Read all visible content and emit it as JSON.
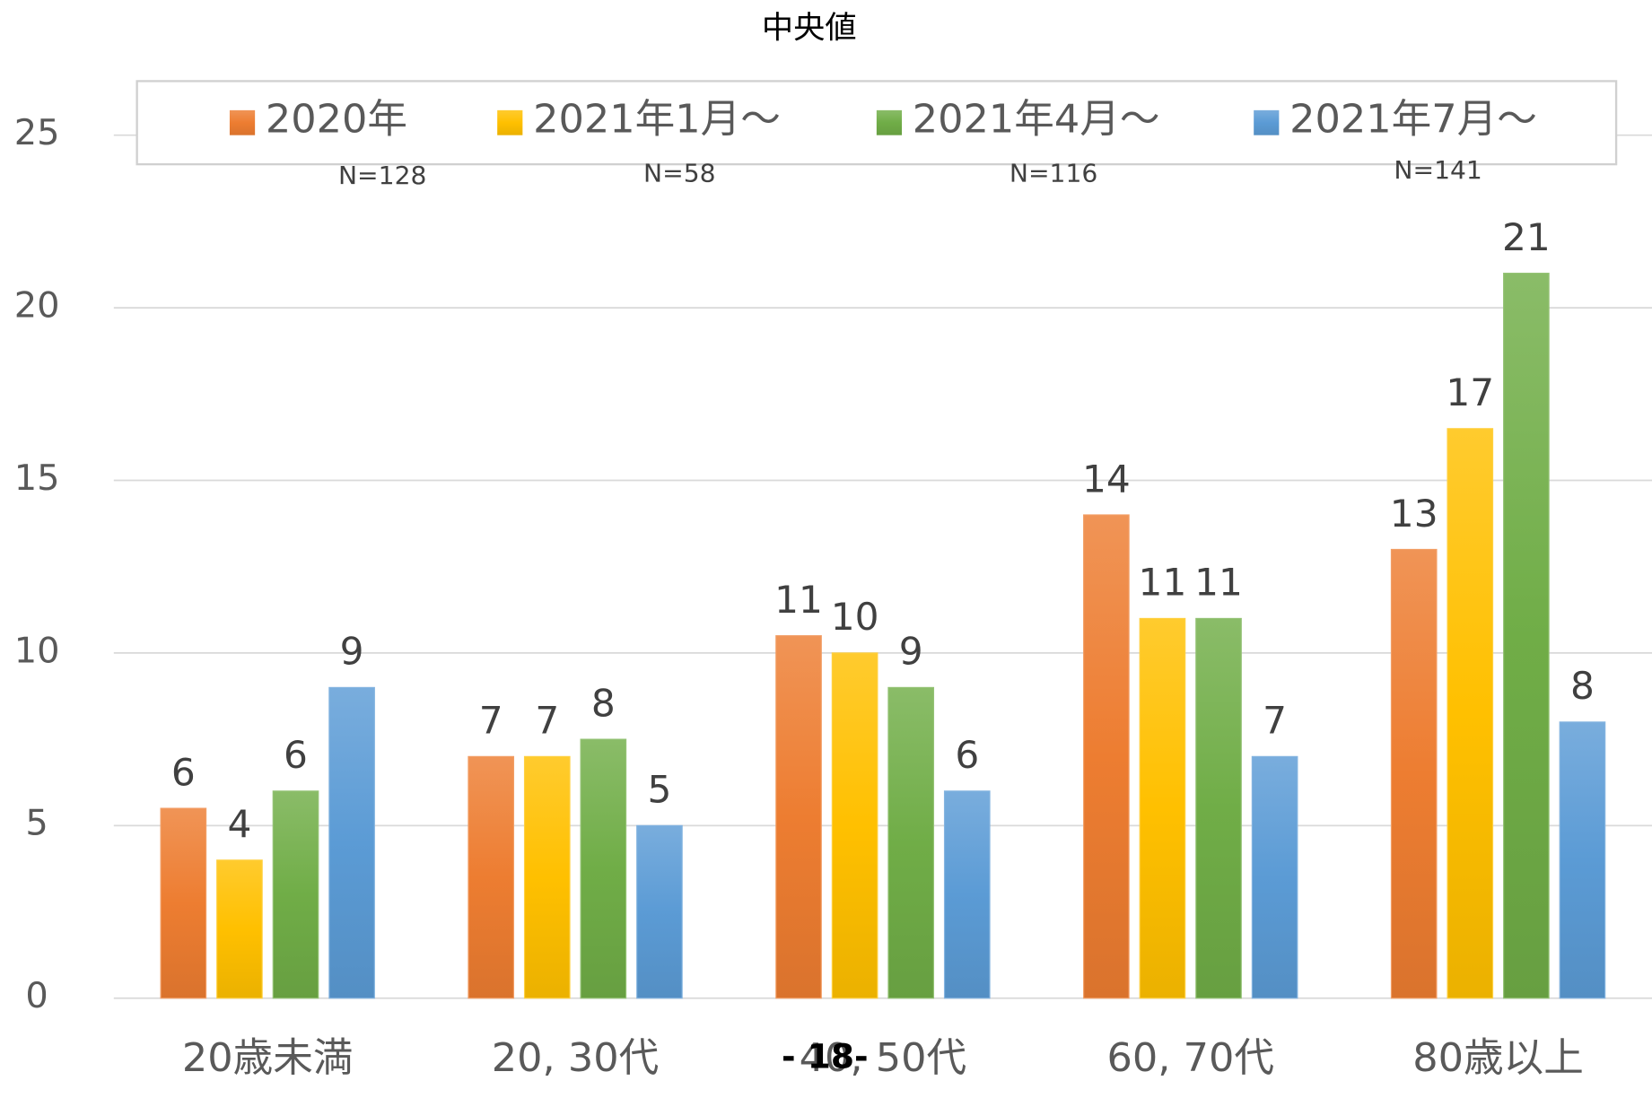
{
  "chart_data": {
    "type": "bar",
    "title": "中央値",
    "categories": [
      "20歳未満",
      "20, 30代",
      "40, 50代",
      "60, 70代",
      "80歳以上"
    ],
    "series": [
      {
        "name": "2020年",
        "color": "#ed7d31",
        "values": [
          5.5,
          7,
          10.5,
          14,
          13
        ],
        "value_labels": [
          "6",
          "7",
          "11",
          "14",
          "13"
        ]
      },
      {
        "name": "2021年1月～",
        "color": "#ffc000",
        "values": [
          4,
          7,
          10,
          11,
          16.5
        ],
        "value_labels": [
          "4",
          "7",
          "10",
          "11",
          "17"
        ]
      },
      {
        "name": "2021年4月～",
        "color": "#70ad47",
        "values": [
          6,
          7.5,
          9,
          11,
          21
        ],
        "value_labels": [
          "6",
          "8",
          "9",
          "11",
          "21"
        ]
      },
      {
        "name": "2021年7月～",
        "color": "#5b9bd5",
        "values": [
          9,
          5,
          6,
          7,
          8
        ],
        "value_labels": [
          "9",
          "5",
          "6",
          "7",
          "8"
        ]
      }
    ],
    "annotations": [
      "N=128",
      "N=58",
      "N=116",
      "N=141",
      "- 18-"
    ],
    "ylim": [
      0,
      25
    ],
    "yticks": [
      0,
      5,
      10,
      15,
      20,
      25
    ],
    "grid": true,
    "legend": "top"
  }
}
